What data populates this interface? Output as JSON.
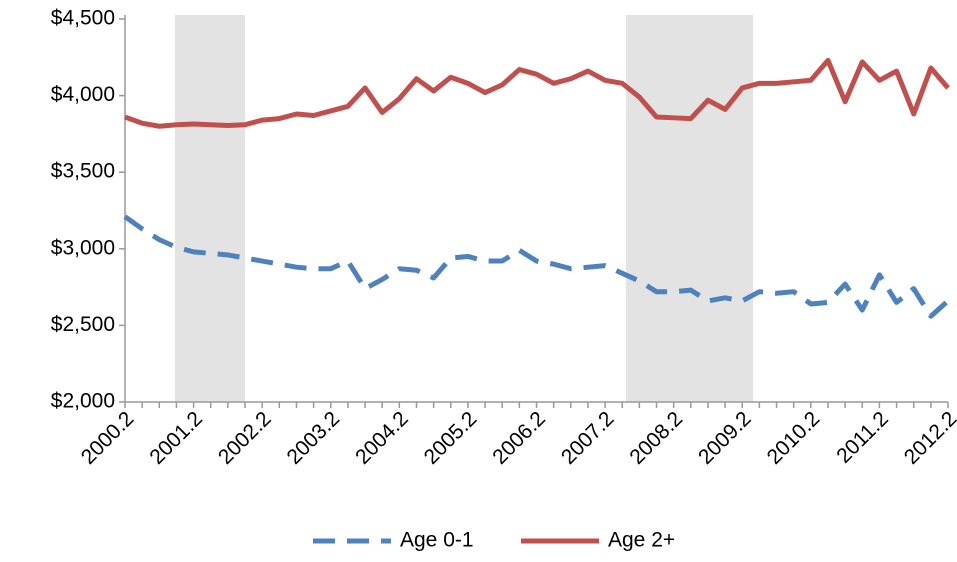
{
  "chart_data": {
    "type": "line",
    "categories": [
      "2000.2",
      null,
      null,
      null,
      "2001.2",
      null,
      null,
      null,
      "2002.2",
      null,
      null,
      null,
      "2003.2",
      null,
      null,
      null,
      "2004.2",
      null,
      null,
      null,
      "2005.2",
      null,
      null,
      null,
      "2006.2",
      null,
      null,
      null,
      "2007.2",
      null,
      null,
      null,
      "2008.2",
      null,
      null,
      null,
      "2009.2",
      null,
      null,
      null,
      "2010.2",
      null,
      null,
      null,
      "2011.2",
      null,
      null,
      null,
      "2012.2"
    ],
    "series": [
      {
        "name": "Age 0-1",
        "color": "#4f81bd",
        "line_style": "dashed",
        "values": [
          3210,
          3130,
          3060,
          3010,
          2980,
          2970,
          2960,
          2940,
          2920,
          2900,
          2880,
          2870,
          2870,
          2920,
          2740,
          2800,
          2870,
          2860,
          2810,
          2940,
          2950,
          2920,
          2920,
          2990,
          2920,
          2900,
          2870,
          2880,
          2890,
          2840,
          2790,
          2720,
          2720,
          2730,
          2660,
          2680,
          2660,
          2720,
          2710,
          2720,
          2640,
          2650,
          2770,
          2600,
          2830,
          2650,
          2740,
          2560,
          2660
        ]
      },
      {
        "name": "Age 2+",
        "color": "#c0504d",
        "line_style": "solid",
        "values": [
          3860,
          3820,
          3800,
          3810,
          3815,
          3810,
          3805,
          3810,
          3840,
          3850,
          3880,
          3870,
          3900,
          3930,
          4050,
          3890,
          3980,
          4110,
          4030,
          4120,
          4080,
          4020,
          4070,
          4170,
          4140,
          4080,
          4110,
          4160,
          4100,
          4080,
          3990,
          3860,
          3855,
          3850,
          3970,
          3910,
          4050,
          4080,
          4080,
          4090,
          4100,
          4230,
          3960,
          4220,
          4100,
          4160,
          3880,
          4180,
          4050
        ]
      }
    ],
    "ylim": [
      2000,
      4500
    ],
    "yticks": [
      {
        "value": 2000,
        "label": "$2,000"
      },
      {
        "value": 2500,
        "label": "$2,500"
      },
      {
        "value": 3000,
        "label": "$3,000"
      },
      {
        "value": 3500,
        "label": "$3,500"
      },
      {
        "value": 4000,
        "label": "$4,000"
      },
      {
        "value": 4500,
        "label": "$4,500"
      }
    ],
    "grid": false,
    "legend": "bottom"
  }
}
